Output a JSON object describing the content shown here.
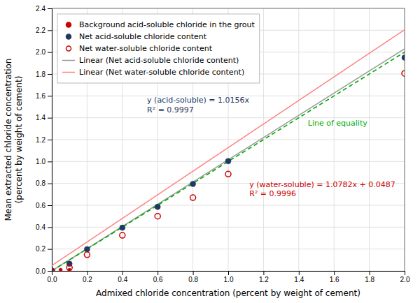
{
  "chart_data": {
    "type": "scatter",
    "title": "",
    "xlabel": "Admixed chloride concentration (percent by weight of cement)",
    "ylabel": "Mean extracted chloride concentration\n(percent by weight of cement)",
    "xlim": [
      0,
      2.0
    ],
    "ylim": [
      0,
      2.4
    ],
    "xticks": [
      {
        "value": 0.0,
        "label": "0.0"
      },
      0.2,
      0.4,
      0.6,
      0.8,
      {
        "value": 1.0,
        "label": "1.0"
      },
      1.2,
      1.4,
      1.6,
      1.8,
      {
        "value": 2.0,
        "label": "2.0"
      }
    ],
    "yticks": [
      {
        "value": 0.0,
        "label": "0.0"
      },
      0.2,
      0.4,
      0.6,
      0.8,
      {
        "value": 1.0,
        "label": "1.0"
      },
      1.2,
      1.4,
      1.6,
      1.8,
      {
        "value": 2.0,
        "label": "2.0"
      },
      2.2,
      2.4
    ],
    "grid": true,
    "legend": "upper-left",
    "series": [
      {
        "name": "Background acid-soluble chloride in the grout",
        "type": "scatter",
        "marker": "circle",
        "color": "#CC0000",
        "x": [
          0.0,
          0.05,
          0.1
        ],
        "values": [
          0.009,
          0.009,
          0.009
        ]
      },
      {
        "name": "Net acid-soluble chloride content",
        "type": "scatter",
        "marker": "circle",
        "color": "#1F3864",
        "x": [
          0.0,
          0.1,
          0.2,
          0.4,
          0.6,
          0.8,
          1.0,
          2.0
        ],
        "values": [
          0.0,
          0.065,
          0.198,
          0.395,
          0.585,
          0.795,
          1.003,
          1.95
        ]
      },
      {
        "name": "Net water-soluble chloride content",
        "type": "scatter",
        "marker": "circle-open",
        "color": "#CC0000",
        "x": [
          0.0,
          0.1,
          0.2,
          0.4,
          0.6,
          0.8,
          1.0,
          2.0
        ],
        "values": [
          0.0,
          0.03,
          0.148,
          0.325,
          0.5,
          0.67,
          0.885,
          1.805
        ]
      },
      {
        "name": "Linear (Net acid-soluble chloride content)",
        "type": "line",
        "line_style": "solid",
        "color": "#999999",
        "x": [
          0.0,
          2.0
        ],
        "values": [
          0.0,
          2.0312
        ]
      },
      {
        "name": "Linear (Net water-soluble chloride content)",
        "type": "line",
        "line_style": "solid",
        "color": "#FF8080",
        "x": [
          0.0,
          2.0
        ],
        "values": [
          0.0487,
          2.2051
        ]
      }
    ],
    "reference_line": {
      "label": "Line of equality",
      "color": "#00AA00",
      "line_style": "dashed",
      "x": [
        0.0,
        2.0
      ],
      "y": [
        0.0,
        2.0
      ]
    },
    "annotations": [
      {
        "text": "y (acid-soluble) = 1.0156x\nR² = 0.9997",
        "color": "#1F3864"
      },
      {
        "text": "y (water-soluble) = 1.0782x + 0.0487\nR² = 0.9996",
        "color": "#CC0000"
      }
    ]
  }
}
